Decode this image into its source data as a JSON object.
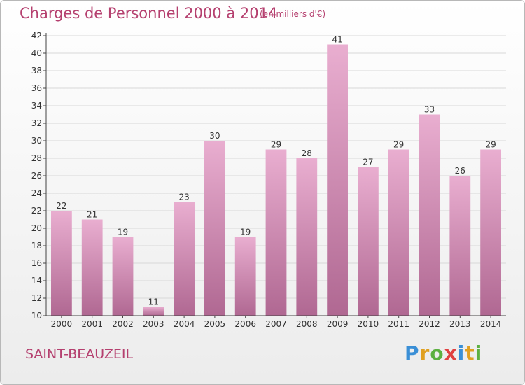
{
  "header": {
    "title": "Charges de Personnel 2000 à 2014",
    "subtitle": "(en milliers d'€)"
  },
  "footer": {
    "commune": "SAINT-BEAUZEIL",
    "brand": "Proxiti"
  },
  "colors": {
    "text_accent": "#b5406f",
    "bar_top": "#e9aed0",
    "bar_bottom": "#b06892",
    "grid": "#d8d8d8"
  },
  "chart_data": {
    "type": "bar",
    "categories": [
      "2000",
      "2001",
      "2002",
      "2003",
      "2004",
      "2005",
      "2006",
      "2007",
      "2008",
      "2009",
      "2010",
      "2011",
      "2012",
      "2013",
      "2014"
    ],
    "values": [
      22,
      21,
      19,
      11,
      23,
      30,
      19,
      29,
      28,
      41,
      27,
      29,
      33,
      26,
      29
    ],
    "title": "Charges de Personnel 2000 à 2014",
    "subtitle": "(en milliers d'€)",
    "xlabel": "",
    "ylabel": "",
    "ylim": [
      10,
      42
    ],
    "yticks": [
      10,
      12,
      14,
      16,
      18,
      20,
      22,
      24,
      26,
      28,
      30,
      32,
      34,
      36,
      38,
      40,
      42
    ],
    "grid": true,
    "legend": "none"
  }
}
